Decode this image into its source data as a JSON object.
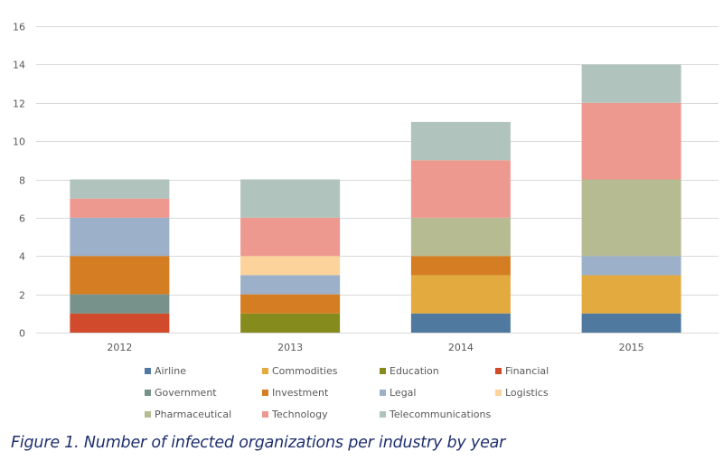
{
  "chart_data": {
    "type": "bar",
    "stacked": true,
    "title": "",
    "xlabel": "",
    "ylabel": "",
    "ylim": [
      0,
      16
    ],
    "yticks": [
      0,
      2,
      4,
      6,
      8,
      10,
      12,
      14,
      16
    ],
    "ytick_labels": [
      "0",
      "2",
      "4",
      "6",
      "8",
      "10",
      "12",
      "14",
      "16"
    ],
    "grid": true,
    "legend_position": "bottom",
    "categories": [
      "2012",
      "2013",
      "2014",
      "2015"
    ],
    "series": [
      {
        "name": "Airline",
        "color": "#50799f",
        "values": [
          0,
          0,
          1,
          1
        ]
      },
      {
        "name": "Commodities",
        "color": "#e2aa3f",
        "values": [
          0,
          0,
          2,
          2
        ]
      },
      {
        "name": "Education",
        "color": "#868b1e",
        "values": [
          0,
          1,
          0,
          0
        ]
      },
      {
        "name": "Financial",
        "color": "#d04a2b",
        "values": [
          1,
          0,
          0,
          0
        ]
      },
      {
        "name": "Government",
        "color": "#76928a",
        "values": [
          1,
          0,
          0,
          0
        ]
      },
      {
        "name": "Investment",
        "color": "#d57d22",
        "values": [
          2,
          1,
          1,
          0
        ]
      },
      {
        "name": "Legal",
        "color": "#9cb0c9",
        "values": [
          2,
          1,
          0,
          1
        ]
      },
      {
        "name": "Logistics",
        "color": "#fbd39b",
        "values": [
          0,
          1,
          0,
          0
        ]
      },
      {
        "name": "Pharmaceutical",
        "color": "#b7bb91",
        "values": [
          0,
          0,
          2,
          4
        ]
      },
      {
        "name": "Technology",
        "color": "#ee9990",
        "values": [
          1,
          2,
          3,
          4
        ]
      },
      {
        "name": "Telecommunications",
        "color": "#b0c3bd",
        "values": [
          1,
          2,
          2,
          2
        ]
      }
    ]
  },
  "caption": "Figure 1. Number of infected organizations per industry by year"
}
